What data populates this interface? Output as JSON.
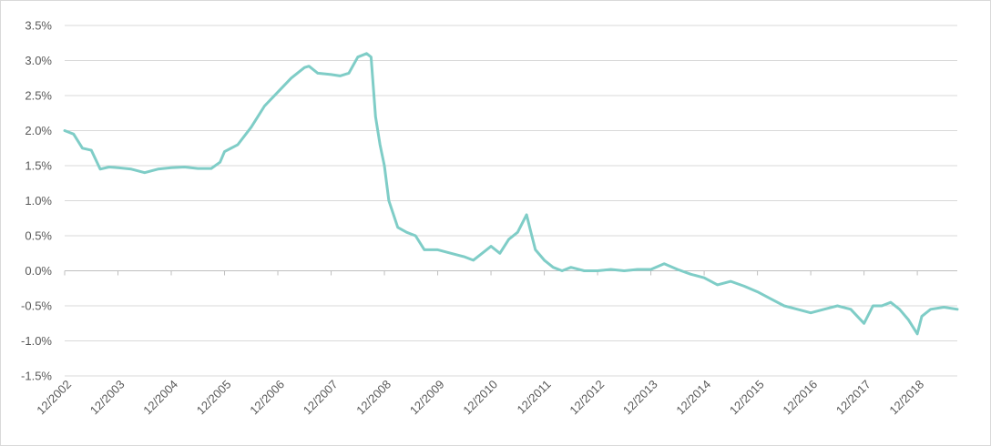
{
  "chart_data": {
    "type": "line",
    "title": "",
    "xlabel": "",
    "ylabel": "",
    "x_ticks": [
      "12/2002",
      "12/2003",
      "12/2004",
      "12/2005",
      "12/2006",
      "12/2007",
      "12/2008",
      "12/2009",
      "12/2010",
      "12/2011",
      "12/2012",
      "12/2013",
      "12/2014",
      "12/2015",
      "12/2016",
      "12/2017",
      "12/2018"
    ],
    "y_ticks": [
      "3.5%",
      "3.0%",
      "2.5%",
      "2.0%",
      "1.5%",
      "1.0%",
      "0.5%",
      "0.0%",
      "-0.5%",
      "-1.0%",
      "-1.5%"
    ],
    "xlim": [
      "12/2002",
      "09/2019"
    ],
    "ylim": [
      -1.5,
      3.5
    ],
    "y_unit": "%",
    "grid": true,
    "legend": "none",
    "series": [
      {
        "color": "#7fcdc7",
        "points": [
          [
            "12/2002",
            2.0
          ],
          [
            "02/2003",
            1.95
          ],
          [
            "04/2003",
            1.75
          ],
          [
            "06/2003",
            1.72
          ],
          [
            "08/2003",
            1.45
          ],
          [
            "10/2003",
            1.48
          ],
          [
            "12/2003",
            1.47
          ],
          [
            "03/2004",
            1.45
          ],
          [
            "06/2004",
            1.4
          ],
          [
            "09/2004",
            1.45
          ],
          [
            "12/2004",
            1.47
          ],
          [
            "03/2005",
            1.48
          ],
          [
            "06/2005",
            1.46
          ],
          [
            "09/2005",
            1.46
          ],
          [
            "11/2005",
            1.55
          ],
          [
            "12/2005",
            1.7
          ],
          [
            "03/2006",
            1.8
          ],
          [
            "06/2006",
            2.05
          ],
          [
            "09/2006",
            2.35
          ],
          [
            "12/2006",
            2.55
          ],
          [
            "03/2007",
            2.75
          ],
          [
            "06/2007",
            2.9
          ],
          [
            "07/2007",
            2.92
          ],
          [
            "09/2007",
            2.82
          ],
          [
            "12/2007",
            2.8
          ],
          [
            "02/2008",
            2.78
          ],
          [
            "04/2008",
            2.82
          ],
          [
            "06/2008",
            3.05
          ],
          [
            "08/2008",
            3.1
          ],
          [
            "09/2008",
            3.05
          ],
          [
            "10/2008",
            2.2
          ],
          [
            "11/2008",
            1.8
          ],
          [
            "12/2008",
            1.5
          ],
          [
            "01/2009",
            1.0
          ],
          [
            "03/2009",
            0.62
          ],
          [
            "05/2009",
            0.55
          ],
          [
            "07/2009",
            0.5
          ],
          [
            "09/2009",
            0.3
          ],
          [
            "12/2009",
            0.3
          ],
          [
            "03/2010",
            0.25
          ],
          [
            "06/2010",
            0.2
          ],
          [
            "08/2010",
            0.15
          ],
          [
            "10/2010",
            0.25
          ],
          [
            "12/2010",
            0.35
          ],
          [
            "02/2011",
            0.25
          ],
          [
            "04/2011",
            0.45
          ],
          [
            "06/2011",
            0.55
          ],
          [
            "08/2011",
            0.8
          ],
          [
            "09/2011",
            0.55
          ],
          [
            "10/2011",
            0.3
          ],
          [
            "12/2011",
            0.15
          ],
          [
            "02/2012",
            0.05
          ],
          [
            "04/2012",
            0.0
          ],
          [
            "06/2012",
            0.05
          ],
          [
            "09/2012",
            0.0
          ],
          [
            "12/2012",
            0.0
          ],
          [
            "03/2013",
            0.02
          ],
          [
            "06/2013",
            0.0
          ],
          [
            "09/2013",
            0.02
          ],
          [
            "12/2013",
            0.02
          ],
          [
            "03/2014",
            0.1
          ],
          [
            "06/2014",
            0.02
          ],
          [
            "09/2014",
            -0.05
          ],
          [
            "12/2014",
            -0.1
          ],
          [
            "03/2015",
            -0.2
          ],
          [
            "06/2015",
            -0.15
          ],
          [
            "09/2015",
            -0.22
          ],
          [
            "12/2015",
            -0.3
          ],
          [
            "03/2016",
            -0.4
          ],
          [
            "06/2016",
            -0.5
          ],
          [
            "09/2016",
            -0.55
          ],
          [
            "12/2016",
            -0.6
          ],
          [
            "03/2017",
            -0.55
          ],
          [
            "06/2017",
            -0.5
          ],
          [
            "09/2017",
            -0.55
          ],
          [
            "12/2017",
            -0.75
          ],
          [
            "02/2018",
            -0.5
          ],
          [
            "04/2018",
            -0.5
          ],
          [
            "06/2018",
            -0.45
          ],
          [
            "08/2018",
            -0.55
          ],
          [
            "10/2018",
            -0.7
          ],
          [
            "11/2018",
            -0.8
          ],
          [
            "12/2018",
            -0.9
          ],
          [
            "01/2019",
            -0.65
          ],
          [
            "03/2019",
            -0.55
          ],
          [
            "06/2019",
            -0.52
          ],
          [
            "09/2019",
            -0.55
          ]
        ]
      }
    ]
  }
}
